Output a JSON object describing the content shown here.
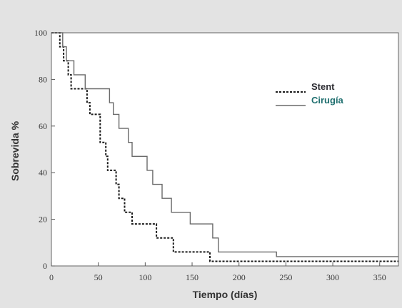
{
  "chart_data": {
    "type": "line",
    "title": "",
    "xlabel": "Tiempo (días)",
    "ylabel": "Sobrevida %",
    "xlim": [
      0,
      370
    ],
    "ylim": [
      0,
      100
    ],
    "x_ticks": [
      0,
      50,
      100,
      150,
      200,
      250,
      300,
      350
    ],
    "y_ticks": [
      0,
      20,
      40,
      60,
      80,
      100
    ],
    "x_tick_labels": [
      "0",
      "50",
      "100",
      "150",
      "200",
      "250",
      "300",
      "350"
    ],
    "y_tick_labels": [
      "0",
      "20",
      "40",
      "60",
      "80",
      "100"
    ],
    "legend_position": "top-right",
    "grid": false,
    "series": [
      {
        "name": "Stent",
        "style": "dashed",
        "color": "#1a1a1a",
        "label_color": "#2d2d33",
        "points": [
          [
            0,
            100
          ],
          [
            9,
            100
          ],
          [
            9,
            94
          ],
          [
            13,
            94
          ],
          [
            13,
            88
          ],
          [
            18,
            88
          ],
          [
            18,
            82
          ],
          [
            21,
            82
          ],
          [
            21,
            76
          ],
          [
            38,
            76
          ],
          [
            38,
            70
          ],
          [
            41,
            70
          ],
          [
            41,
            65
          ],
          [
            52,
            65
          ],
          [
            52,
            53
          ],
          [
            58,
            53
          ],
          [
            58,
            47
          ],
          [
            60,
            47
          ],
          [
            60,
            41
          ],
          [
            69,
            41
          ],
          [
            69,
            35
          ],
          [
            72,
            35
          ],
          [
            72,
            29
          ],
          [
            78,
            29
          ],
          [
            78,
            23
          ],
          [
            86,
            23
          ],
          [
            86,
            18
          ],
          [
            112,
            18
          ],
          [
            112,
            12
          ],
          [
            130,
            12
          ],
          [
            130,
            6
          ],
          [
            169,
            6
          ],
          [
            169,
            2
          ],
          [
            370,
            2
          ]
        ]
      },
      {
        "name": "Cirugía",
        "style": "solid",
        "color": "#6a6a6a",
        "label_color": "#1f6f6f",
        "points": [
          [
            0,
            100
          ],
          [
            12,
            100
          ],
          [
            12,
            94
          ],
          [
            16,
            94
          ],
          [
            16,
            88
          ],
          [
            24,
            88
          ],
          [
            24,
            82
          ],
          [
            36,
            82
          ],
          [
            36,
            76
          ],
          [
            62,
            76
          ],
          [
            62,
            70
          ],
          [
            66,
            70
          ],
          [
            66,
            65
          ],
          [
            72,
            65
          ],
          [
            72,
            59
          ],
          [
            82,
            59
          ],
          [
            82,
            53
          ],
          [
            86,
            53
          ],
          [
            86,
            47
          ],
          [
            102,
            47
          ],
          [
            102,
            41
          ],
          [
            108,
            41
          ],
          [
            108,
            35
          ],
          [
            118,
            35
          ],
          [
            118,
            29
          ],
          [
            128,
            29
          ],
          [
            128,
            23
          ],
          [
            148,
            23
          ],
          [
            148,
            18
          ],
          [
            172,
            18
          ],
          [
            172,
            12
          ],
          [
            178,
            12
          ],
          [
            178,
            6
          ],
          [
            240,
            6
          ],
          [
            240,
            4
          ],
          [
            370,
            4
          ]
        ]
      }
    ]
  }
}
